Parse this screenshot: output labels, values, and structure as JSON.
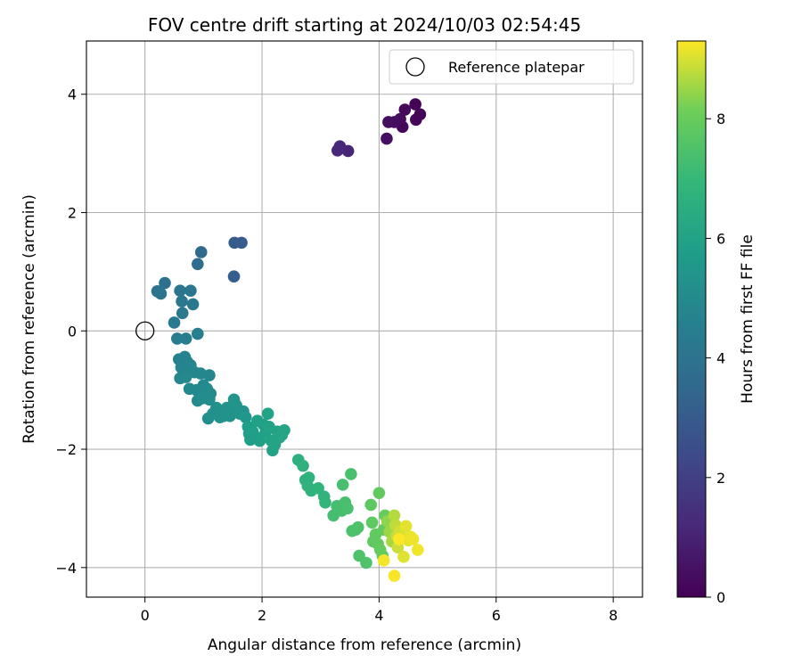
{
  "chart_data": {
    "type": "scatter",
    "title": "FOV centre drift starting at 2024/10/03 02:54:45",
    "xlabel": "Angular distance from reference (arcmin)",
    "ylabel": "Rotation from reference (arcmin)",
    "xlim": [
      -1.0,
      8.5
    ],
    "ylim": [
      -4.5,
      4.9
    ],
    "xticks": [
      0,
      2,
      4,
      6,
      8
    ],
    "yticks": [
      -4,
      -2,
      0,
      2,
      4
    ],
    "xtick_labels": [
      "0",
      "2",
      "4",
      "6",
      "8"
    ],
    "ytick_labels": [
      "−4",
      "−2",
      "0",
      "2",
      "4"
    ],
    "grid": true,
    "legend": {
      "position": "top-right",
      "label": "Reference platepar"
    },
    "colorbar": {
      "label": "Hours from first FF file",
      "range": [
        0,
        9.3
      ],
      "ticks": [
        0,
        2,
        4,
        6,
        8
      ],
      "colormap": "viridis"
    },
    "reference_point": {
      "x": 0,
      "y": 0
    },
    "points": [
      {
        "x": 4.62,
        "y": 3.83,
        "h": 0.05
      },
      {
        "x": 4.7,
        "y": 3.66,
        "h": 0.1
      },
      {
        "x": 4.63,
        "y": 3.57,
        "h": 0.15
      },
      {
        "x": 4.44,
        "y": 3.74,
        "h": 0.2
      },
      {
        "x": 4.4,
        "y": 3.45,
        "h": 0.25
      },
      {
        "x": 4.36,
        "y": 3.58,
        "h": 0.3
      },
      {
        "x": 4.26,
        "y": 3.53,
        "h": 0.35
      },
      {
        "x": 4.16,
        "y": 3.53,
        "h": 0.4
      },
      {
        "x": 4.13,
        "y": 3.25,
        "h": 0.45
      },
      {
        "x": 3.47,
        "y": 3.04,
        "h": 1.1
      },
      {
        "x": 3.33,
        "y": 3.12,
        "h": 1.15
      },
      {
        "x": 3.29,
        "y": 3.05,
        "h": 1.2
      },
      {
        "x": 1.65,
        "y": 1.49,
        "h": 3.0
      },
      {
        "x": 1.53,
        "y": 1.49,
        "h": 3.05
      },
      {
        "x": 1.52,
        "y": 0.92,
        "h": 3.1
      },
      {
        "x": 0.96,
        "y": 1.33,
        "h": 3.6
      },
      {
        "x": 0.9,
        "y": 1.13,
        "h": 3.65
      },
      {
        "x": 0.34,
        "y": 0.81,
        "h": 3.9
      },
      {
        "x": 0.21,
        "y": 0.67,
        "h": 3.95
      },
      {
        "x": 0.27,
        "y": 0.63,
        "h": 4.0
      },
      {
        "x": 0.6,
        "y": 0.68,
        "h": 4.05
      },
      {
        "x": 0.78,
        "y": 0.68,
        "h": 4.1
      },
      {
        "x": 0.63,
        "y": 0.5,
        "h": 4.15
      },
      {
        "x": 0.82,
        "y": 0.45,
        "h": 4.2
      },
      {
        "x": 0.64,
        "y": 0.3,
        "h": 4.25
      },
      {
        "x": 0.5,
        "y": 0.14,
        "h": 4.3
      },
      {
        "x": 0.55,
        "y": -0.13,
        "h": 4.4
      },
      {
        "x": 0.7,
        "y": -0.13,
        "h": 4.45
      },
      {
        "x": 0.9,
        "y": -0.05,
        "h": 4.5
      },
      {
        "x": 0.58,
        "y": -0.48,
        "h": 4.6
      },
      {
        "x": 0.68,
        "y": -0.44,
        "h": 4.65
      },
      {
        "x": 0.72,
        "y": -0.52,
        "h": 4.7
      },
      {
        "x": 0.78,
        "y": -0.58,
        "h": 4.72
      },
      {
        "x": 0.62,
        "y": -0.62,
        "h": 4.75
      },
      {
        "x": 0.74,
        "y": -0.66,
        "h": 4.78
      },
      {
        "x": 0.85,
        "y": -0.7,
        "h": 4.8
      },
      {
        "x": 0.95,
        "y": -0.72,
        "h": 4.82
      },
      {
        "x": 1.1,
        "y": -0.75,
        "h": 4.85
      },
      {
        "x": 0.6,
        "y": -0.8,
        "h": 4.87
      },
      {
        "x": 0.7,
        "y": -0.78,
        "h": 4.9
      },
      {
        "x": 0.76,
        "y": -0.98,
        "h": 4.92
      },
      {
        "x": 0.88,
        "y": -1.0,
        "h": 4.94
      },
      {
        "x": 1.0,
        "y": -0.92,
        "h": 4.96
      },
      {
        "x": 1.06,
        "y": -0.98,
        "h": 4.98
      },
      {
        "x": 0.9,
        "y": -1.18,
        "h": 5.0
      },
      {
        "x": 1.02,
        "y": -1.08,
        "h": 5.02
      },
      {
        "x": 1.12,
        "y": -1.06,
        "h": 5.04
      },
      {
        "x": 0.98,
        "y": -1.14,
        "h": 5.06
      },
      {
        "x": 1.1,
        "y": -1.16,
        "h": 5.08
      },
      {
        "x": 1.08,
        "y": -1.48,
        "h": 5.2
      },
      {
        "x": 1.16,
        "y": -1.4,
        "h": 5.22
      },
      {
        "x": 1.22,
        "y": -1.3,
        "h": 5.24
      },
      {
        "x": 1.3,
        "y": -1.36,
        "h": 5.26
      },
      {
        "x": 1.34,
        "y": -1.44,
        "h": 5.28
      },
      {
        "x": 1.28,
        "y": -1.46,
        "h": 5.3
      },
      {
        "x": 1.4,
        "y": -1.3,
        "h": 5.32
      },
      {
        "x": 1.5,
        "y": -1.36,
        "h": 5.34
      },
      {
        "x": 1.45,
        "y": -1.44,
        "h": 5.36
      },
      {
        "x": 1.52,
        "y": -1.16,
        "h": 5.38
      },
      {
        "x": 1.56,
        "y": -1.26,
        "h": 5.4
      },
      {
        "x": 1.62,
        "y": -1.4,
        "h": 5.42
      },
      {
        "x": 1.68,
        "y": -1.36,
        "h": 5.44
      },
      {
        "x": 1.72,
        "y": -1.46,
        "h": 5.46
      },
      {
        "x": 1.76,
        "y": -1.62,
        "h": 5.8
      },
      {
        "x": 1.78,
        "y": -1.74,
        "h": 5.82
      },
      {
        "x": 1.84,
        "y": -1.7,
        "h": 5.84
      },
      {
        "x": 1.8,
        "y": -1.84,
        "h": 5.86
      },
      {
        "x": 1.9,
        "y": -1.8,
        "h": 5.88
      },
      {
        "x": 1.96,
        "y": -1.86,
        "h": 5.9
      },
      {
        "x": 1.92,
        "y": -1.52,
        "h": 5.92
      },
      {
        "x": 2.02,
        "y": -1.58,
        "h": 5.94
      },
      {
        "x": 2.06,
        "y": -1.72,
        "h": 5.96
      },
      {
        "x": 2.1,
        "y": -1.4,
        "h": 5.98
      },
      {
        "x": 2.12,
        "y": -1.62,
        "h": 6.0
      },
      {
        "x": 2.16,
        "y": -1.86,
        "h": 6.02
      },
      {
        "x": 2.18,
        "y": -2.02,
        "h": 6.04
      },
      {
        "x": 2.22,
        "y": -1.92,
        "h": 6.06
      },
      {
        "x": 2.26,
        "y": -1.7,
        "h": 6.08
      },
      {
        "x": 2.3,
        "y": -1.8,
        "h": 6.1
      },
      {
        "x": 2.34,
        "y": -1.76,
        "h": 6.12
      },
      {
        "x": 2.38,
        "y": -1.68,
        "h": 6.14
      },
      {
        "x": 2.62,
        "y": -2.18,
        "h": 6.6
      },
      {
        "x": 2.7,
        "y": -2.28,
        "h": 6.65
      },
      {
        "x": 2.74,
        "y": -2.52,
        "h": 6.7
      },
      {
        "x": 2.8,
        "y": -2.48,
        "h": 6.72
      },
      {
        "x": 2.78,
        "y": -2.62,
        "h": 6.74
      },
      {
        "x": 2.84,
        "y": -2.7,
        "h": 6.76
      },
      {
        "x": 2.96,
        "y": -2.66,
        "h": 6.78
      },
      {
        "x": 3.06,
        "y": -2.8,
        "h": 6.8
      },
      {
        "x": 3.08,
        "y": -2.9,
        "h": 6.82
      },
      {
        "x": 3.22,
        "y": -3.12,
        "h": 7.3
      },
      {
        "x": 3.28,
        "y": -2.96,
        "h": 7.32
      },
      {
        "x": 3.36,
        "y": -3.04,
        "h": 7.34
      },
      {
        "x": 3.38,
        "y": -2.6,
        "h": 7.36
      },
      {
        "x": 3.42,
        "y": -2.9,
        "h": 7.38
      },
      {
        "x": 3.46,
        "y": -3.0,
        "h": 7.4
      },
      {
        "x": 3.52,
        "y": -2.42,
        "h": 7.42
      },
      {
        "x": 3.54,
        "y": -3.38,
        "h": 7.44
      },
      {
        "x": 3.6,
        "y": -3.36,
        "h": 7.46
      },
      {
        "x": 3.64,
        "y": -3.32,
        "h": 7.48
      },
      {
        "x": 3.66,
        "y": -3.8,
        "h": 7.5
      },
      {
        "x": 3.78,
        "y": -3.92,
        "h": 7.52
      },
      {
        "x": 3.86,
        "y": -2.94,
        "h": 7.8
      },
      {
        "x": 3.88,
        "y": -3.24,
        "h": 7.82
      },
      {
        "x": 3.9,
        "y": -3.56,
        "h": 7.84
      },
      {
        "x": 3.94,
        "y": -3.44,
        "h": 7.86
      },
      {
        "x": 3.98,
        "y": -3.6,
        "h": 7.88
      },
      {
        "x": 4.0,
        "y": -2.74,
        "h": 7.9
      },
      {
        "x": 4.02,
        "y": -3.7,
        "h": 7.92
      },
      {
        "x": 4.06,
        "y": -3.8,
        "h": 7.94
      },
      {
        "x": 4.08,
        "y": -3.36,
        "h": 7.96
      },
      {
        "x": 4.1,
        "y": -3.12,
        "h": 7.98
      },
      {
        "x": 4.14,
        "y": -3.22,
        "h": 8.4
      },
      {
        "x": 4.18,
        "y": -3.4,
        "h": 8.5
      },
      {
        "x": 4.22,
        "y": -3.56,
        "h": 8.6
      },
      {
        "x": 4.26,
        "y": -3.12,
        "h": 8.7
      },
      {
        "x": 4.28,
        "y": -3.28,
        "h": 8.8
      },
      {
        "x": 4.3,
        "y": -3.46,
        "h": 8.85
      },
      {
        "x": 4.32,
        "y": -3.66,
        "h": 8.9
      },
      {
        "x": 4.36,
        "y": -3.38,
        "h": 8.95
      },
      {
        "x": 4.4,
        "y": -3.5,
        "h": 9.0
      },
      {
        "x": 4.42,
        "y": -3.82,
        "h": 9.05
      },
      {
        "x": 4.46,
        "y": -3.3,
        "h": 9.08
      },
      {
        "x": 4.5,
        "y": -3.54,
        "h": 9.1
      },
      {
        "x": 4.54,
        "y": -3.48,
        "h": 9.15
      },
      {
        "x": 4.58,
        "y": -3.52,
        "h": 9.18
      },
      {
        "x": 4.66,
        "y": -3.7,
        "h": 9.2
      },
      {
        "x": 4.08,
        "y": -3.88,
        "h": 9.22
      },
      {
        "x": 4.26,
        "y": -4.14,
        "h": 9.25
      },
      {
        "x": 4.34,
        "y": -3.52,
        "h": 9.28
      }
    ]
  }
}
